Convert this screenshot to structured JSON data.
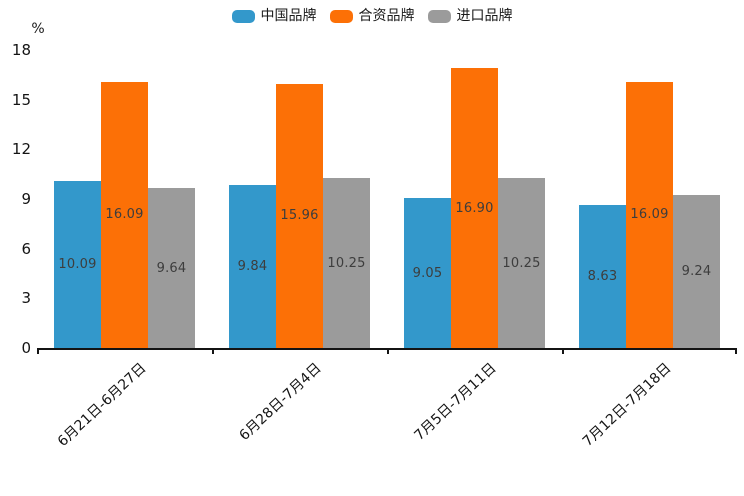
{
  "colors": {
    "series_blue": "#3398cb",
    "series_orange": "#fc7006",
    "series_gray": "#9b9b9b",
    "axis": "#141414",
    "bar_label": "#3d3d3d",
    "background": "#ffffff"
  },
  "chart_data": {
    "type": "bar",
    "title": "",
    "ylabel": "%",
    "ylim": [
      0,
      18
    ],
    "yticks": [
      18,
      15,
      12,
      9,
      6,
      3,
      0
    ],
    "grid": false,
    "legend_position": "top-center",
    "value_labels": "inside-center, two decimals",
    "categories": [
      "6月21日-6月27日",
      "6月28日-7月4日",
      "7月5日-7月11日",
      "7月12日-7月18日"
    ],
    "series": [
      {
        "name": "中国品牌",
        "color": "#3398cb",
        "values": [
          10.09,
          9.84,
          9.05,
          8.63
        ]
      },
      {
        "name": "合资品牌",
        "color": "#fc7006",
        "values": [
          16.09,
          15.96,
          16.9,
          16.09
        ]
      },
      {
        "name": "进口品牌",
        "color": "#9b9b9b",
        "values": [
          9.64,
          10.25,
          10.25,
          9.24
        ]
      }
    ]
  }
}
